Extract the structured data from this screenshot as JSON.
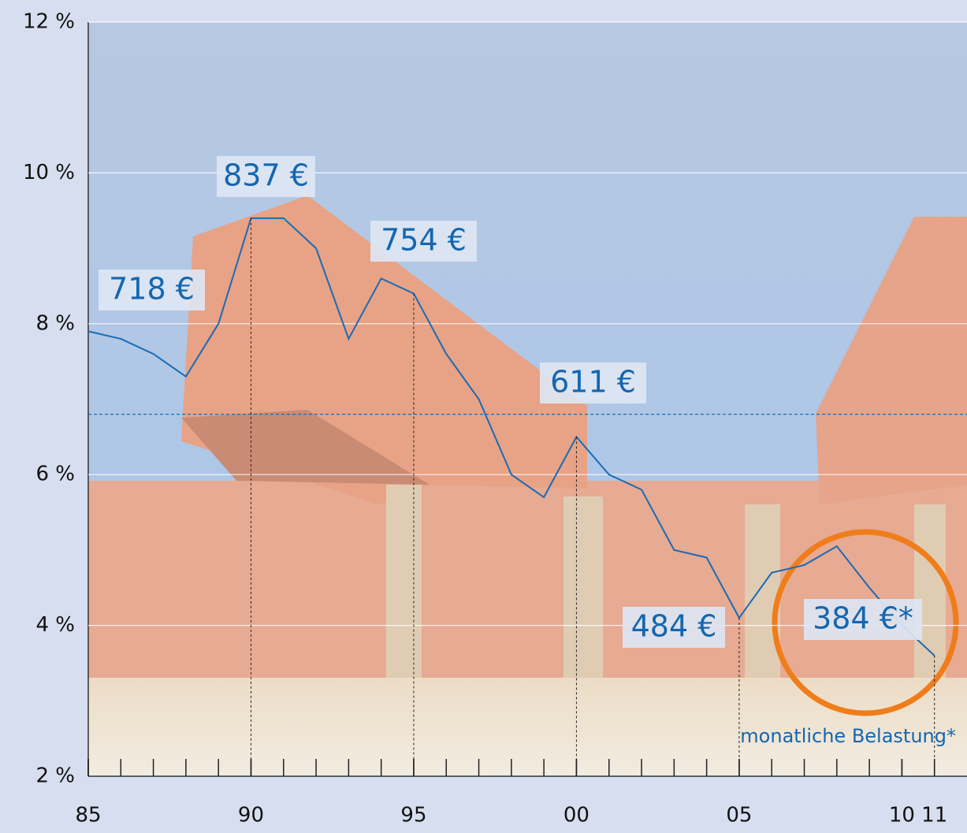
{
  "chart_data": {
    "type": "line",
    "x": [
      1985,
      1986,
      1987,
      1988,
      1989,
      1990,
      1991,
      1992,
      1993,
      1994,
      1995,
      1996,
      1997,
      1998,
      1999,
      2000,
      2001,
      2002,
      2003,
      2004,
      2005,
      2006,
      2007,
      2008,
      2009,
      2010,
      2011
    ],
    "series": [
      {
        "color": "#1a6cb5",
        "values": [
          7.9,
          7.8,
          7.6,
          7.3,
          8.0,
          9.4,
          9.4,
          9.0,
          7.8,
          8.6,
          8.4,
          7.6,
          7.0,
          6.0,
          5.7,
          6.5,
          6.0,
          5.8,
          5.0,
          4.9,
          4.1,
          4.7,
          4.8,
          5.05,
          4.5,
          4.0,
          3.6
        ]
      }
    ],
    "xlim": [
      1985,
      2012
    ],
    "ylim": [
      2,
      12
    ],
    "yticks": [
      {
        "value": 2,
        "label": "2 %"
      },
      {
        "value": 4,
        "label": "4 %"
      },
      {
        "value": 6,
        "label": "6 %"
      },
      {
        "value": 8,
        "label": "8 %"
      },
      {
        "value": 10,
        "label": "10 %"
      },
      {
        "value": 12,
        "label": "12 %"
      }
    ],
    "xticks": [
      {
        "value": 1985,
        "label": "85"
      },
      {
        "value": 1990,
        "label": "90"
      },
      {
        "value": 1995,
        "label": "95"
      },
      {
        "value": 2000,
        "label": "00"
      },
      {
        "value": 2005,
        "label": "05"
      },
      {
        "value": 2010,
        "label": "10"
      },
      {
        "value": 2011,
        "label": "11"
      }
    ],
    "xminorticks": [
      1985,
      1986,
      1987,
      1988,
      1989,
      1990,
      1991,
      1992,
      1993,
      1994,
      1995,
      1996,
      1997,
      1998,
      1999,
      2000,
      2001,
      2002,
      2003,
      2004,
      2005,
      2006,
      2007,
      2008,
      2009,
      2010,
      2011
    ],
    "grid": true,
    "reference_line": 6.8,
    "annotations": [
      {
        "text": "718 €"
      },
      {
        "text": "837 €",
        "x": 1990
      },
      {
        "text": "754 €",
        "x": 1995
      },
      {
        "text": "611 €",
        "x": 2000
      },
      {
        "text": "484 €",
        "x": 2005
      },
      {
        "text": "384 €*",
        "x": 2011
      }
    ],
    "note": "monatliche Belastung*"
  }
}
